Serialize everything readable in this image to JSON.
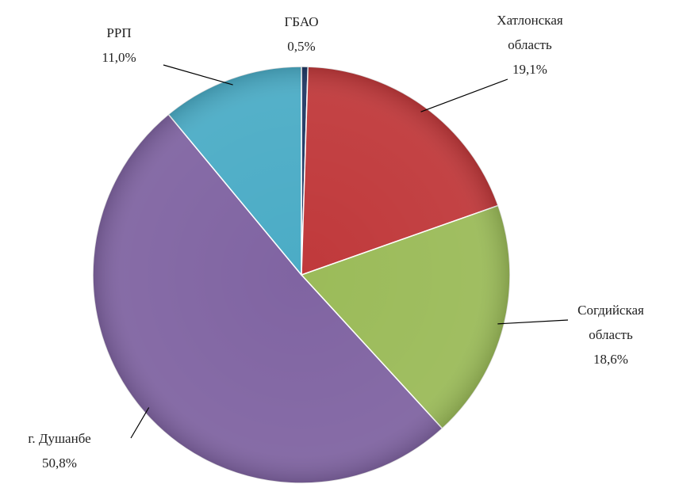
{
  "chart_data": {
    "type": "pie",
    "categories": [
      "ГБАО",
      "Хатлонская область",
      "Согдийская область",
      "г. Душанбе",
      "РРП"
    ],
    "values": [
      0.5,
      19.1,
      18.6,
      50.8,
      11.0
    ],
    "value_labels": [
      "0,5%",
      "19,1%",
      "18,6%",
      "50,8%",
      "11,0%"
    ],
    "colors": [
      "#1f3864",
      "#c0393b",
      "#9bbb59",
      "#8064a2",
      "#4bacc6"
    ]
  }
}
